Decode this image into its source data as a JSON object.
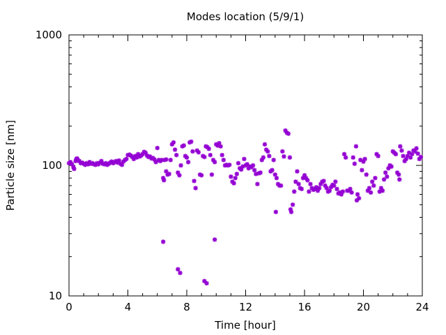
{
  "chart_data": {
    "type": "scatter",
    "title": "Modes location (5/9/1)",
    "xlabel": "Time [hour]",
    "ylabel": "Particle size [nm]",
    "xlim": [
      0,
      24
    ],
    "ylim": [
      10,
      1000
    ],
    "y_scale": "log",
    "grid": false,
    "legend": "none",
    "marker_color": "#9400d3",
    "x_ticks": [
      0,
      4,
      8,
      12,
      16,
      20,
      24
    ],
    "x_tick_labels": [
      "0",
      "4",
      "8",
      "12",
      "16",
      "20",
      "24"
    ],
    "y_ticks": [
      10,
      100,
      1000
    ],
    "y_tick_labels": [
      "10",
      "100",
      "1000"
    ],
    "points": [
      [
        0.0,
        104
      ],
      [
        0.1,
        106
      ],
      [
        0.2,
        102
      ],
      [
        0.3,
        97
      ],
      [
        0.35,
        94
      ],
      [
        0.45,
        108
      ],
      [
        0.5,
        112
      ],
      [
        0.55,
        113
      ],
      [
        0.6,
        110
      ],
      [
        0.7,
        108
      ],
      [
        0.8,
        104
      ],
      [
        0.9,
        105
      ],
      [
        1.0,
        103
      ],
      [
        1.1,
        101
      ],
      [
        1.2,
        104
      ],
      [
        1.3,
        102
      ],
      [
        1.4,
        106
      ],
      [
        1.5,
        103
      ],
      [
        1.6,
        104
      ],
      [
        1.7,
        102
      ],
      [
        1.8,
        101
      ],
      [
        1.9,
        104
      ],
      [
        2.0,
        102
      ],
      [
        2.1,
        105
      ],
      [
        2.2,
        108
      ],
      [
        2.3,
        103
      ],
      [
        2.4,
        102
      ],
      [
        2.5,
        104
      ],
      [
        2.6,
        101
      ],
      [
        2.7,
        103
      ],
      [
        2.8,
        105
      ],
      [
        2.9,
        107
      ],
      [
        3.0,
        104
      ],
      [
        3.1,
        106
      ],
      [
        3.2,
        108
      ],
      [
        3.3,
        105
      ],
      [
        3.4,
        109
      ],
      [
        3.5,
        103
      ],
      [
        3.6,
        101
      ],
      [
        3.7,
        107
      ],
      [
        3.8,
        110
      ],
      [
        3.9,
        112
      ],
      [
        4.0,
        120
      ],
      [
        4.1,
        121
      ],
      [
        4.2,
        119
      ],
      [
        4.3,
        116
      ],
      [
        4.4,
        112
      ],
      [
        4.5,
        118
      ],
      [
        4.6,
        115
      ],
      [
        4.7,
        122
      ],
      [
        4.8,
        117
      ],
      [
        4.9,
        119
      ],
      [
        5.0,
        122
      ],
      [
        5.1,
        127
      ],
      [
        5.2,
        125
      ],
      [
        5.3,
        119
      ],
      [
        5.4,
        116
      ],
      [
        5.5,
        117
      ],
      [
        5.6,
        113
      ],
      [
        5.7,
        114
      ],
      [
        5.8,
        111
      ],
      [
        5.9,
        106
      ],
      [
        6.0,
        136
      ],
      [
        6.1,
        110
      ],
      [
        6.2,
        108
      ],
      [
        6.3,
        110
      ],
      [
        6.4,
        80
      ],
      [
        6.45,
        77
      ],
      [
        6.5,
        110
      ],
      [
        6.6,
        111
      ],
      [
        6.6,
        90
      ],
      [
        6.7,
        85
      ],
      [
        6.8,
        86
      ],
      [
        6.9,
        110
      ],
      [
        7.0,
        145
      ],
      [
        7.1,
        150
      ],
      [
        7.2,
        132
      ],
      [
        7.3,
        120
      ],
      [
        7.4,
        88
      ],
      [
        7.5,
        84
      ],
      [
        7.6,
        100
      ],
      [
        7.7,
        140
      ],
      [
        7.8,
        142
      ],
      [
        7.9,
        118
      ],
      [
        8.0,
        115
      ],
      [
        8.1,
        106
      ],
      [
        8.2,
        150
      ],
      [
        8.3,
        152
      ],
      [
        8.4,
        128
      ],
      [
        8.5,
        76
      ],
      [
        8.6,
        67
      ],
      [
        8.7,
        130
      ],
      [
        8.8,
        126
      ],
      [
        8.9,
        85
      ],
      [
        9.0,
        84
      ],
      [
        9.1,
        118
      ],
      [
        9.2,
        116
      ],
      [
        9.3,
        140
      ],
      [
        9.4,
        138
      ],
      [
        9.5,
        134
      ],
      [
        9.6,
        120
      ],
      [
        9.7,
        85
      ],
      [
        9.8,
        110
      ],
      [
        9.9,
        106
      ],
      [
        10.0,
        145
      ],
      [
        10.1,
        142
      ],
      [
        10.2,
        148
      ],
      [
        10.3,
        140
      ],
      [
        10.4,
        120
      ],
      [
        10.5,
        110
      ],
      [
        10.6,
        100
      ],
      [
        10.7,
        101
      ],
      [
        10.8,
        100
      ],
      [
        10.9,
        101
      ],
      [
        11.0,
        82
      ],
      [
        11.1,
        75
      ],
      [
        11.2,
        73
      ],
      [
        11.3,
        80
      ],
      [
        11.4,
        86
      ],
      [
        11.5,
        104
      ],
      [
        11.6,
        95
      ],
      [
        11.7,
        93
      ],
      [
        11.8,
        98
      ],
      [
        11.9,
        112
      ],
      [
        12.0,
        100
      ],
      [
        12.1,
        102
      ],
      [
        12.2,
        95
      ],
      [
        12.3,
        98
      ],
      [
        12.4,
        97
      ],
      [
        12.5,
        100
      ],
      [
        12.6,
        92
      ],
      [
        12.7,
        86
      ],
      [
        12.8,
        72
      ],
      [
        12.9,
        87
      ],
      [
        13.0,
        88
      ],
      [
        13.1,
        110
      ],
      [
        13.2,
        115
      ],
      [
        13.3,
        145
      ],
      [
        13.4,
        132
      ],
      [
        13.5,
        128
      ],
      [
        13.6,
        118
      ],
      [
        13.7,
        90
      ],
      [
        13.8,
        92
      ],
      [
        13.9,
        110
      ],
      [
        14.0,
        85
      ],
      [
        14.05,
        44
      ],
      [
        14.1,
        80
      ],
      [
        14.2,
        72
      ],
      [
        14.3,
        70
      ],
      [
        14.4,
        70
      ],
      [
        14.5,
        128
      ],
      [
        14.6,
        117
      ],
      [
        14.7,
        185
      ],
      [
        14.8,
        178
      ],
      [
        14.9,
        175
      ],
      [
        15.0,
        115
      ],
      [
        15.05,
        46
      ],
      [
        15.1,
        44
      ],
      [
        15.2,
        50
      ],
      [
        15.3,
        63
      ],
      [
        15.4,
        75
      ],
      [
        15.5,
        90
      ],
      [
        15.6,
        72
      ],
      [
        15.7,
        67
      ],
      [
        15.8,
        66
      ],
      [
        15.9,
        80
      ],
      [
        16.0,
        84
      ],
      [
        16.1,
        80
      ],
      [
        16.2,
        77
      ],
      [
        16.3,
        63
      ],
      [
        16.4,
        72
      ],
      [
        16.5,
        67
      ],
      [
        16.6,
        65
      ],
      [
        16.7,
        66
      ],
      [
        16.8,
        68
      ],
      [
        16.9,
        64
      ],
      [
        17.0,
        67
      ],
      [
        17.1,
        72
      ],
      [
        17.2,
        75
      ],
      [
        17.3,
        76
      ],
      [
        17.4,
        70
      ],
      [
        17.5,
        67
      ],
      [
        17.6,
        63
      ],
      [
        17.7,
        64
      ],
      [
        17.8,
        68
      ],
      [
        17.9,
        71
      ],
      [
        18.0,
        70
      ],
      [
        18.1,
        75
      ],
      [
        18.2,
        66
      ],
      [
        18.3,
        61
      ],
      [
        18.4,
        62
      ],
      [
        18.5,
        60
      ],
      [
        18.6,
        63
      ],
      [
        18.7,
        122
      ],
      [
        18.8,
        115
      ],
      [
        18.9,
        64
      ],
      [
        19.0,
        64
      ],
      [
        19.1,
        66
      ],
      [
        19.2,
        62
      ],
      [
        19.3,
        115
      ],
      [
        19.4,
        103
      ],
      [
        19.5,
        140
      ],
      [
        19.55,
        54
      ],
      [
        19.6,
        60
      ],
      [
        19.7,
        56
      ],
      [
        19.8,
        110
      ],
      [
        19.9,
        92
      ],
      [
        20.0,
        107
      ],
      [
        20.1,
        112
      ],
      [
        20.2,
        85
      ],
      [
        20.3,
        64
      ],
      [
        20.4,
        67
      ],
      [
        20.5,
        62
      ],
      [
        20.6,
        75
      ],
      [
        20.7,
        70
      ],
      [
        20.8,
        80
      ],
      [
        20.9,
        122
      ],
      [
        21.0,
        118
      ],
      [
        21.1,
        63
      ],
      [
        21.2,
        67
      ],
      [
        21.3,
        64
      ],
      [
        21.4,
        78
      ],
      [
        21.5,
        88
      ],
      [
        21.6,
        82
      ],
      [
        21.7,
        95
      ],
      [
        21.8,
        100
      ],
      [
        21.9,
        98
      ],
      [
        22.0,
        128
      ],
      [
        22.1,
        125
      ],
      [
        22.2,
        122
      ],
      [
        22.3,
        88
      ],
      [
        22.4,
        85
      ],
      [
        22.45,
        78
      ],
      [
        22.5,
        140
      ],
      [
        22.6,
        130
      ],
      [
        22.7,
        118
      ],
      [
        22.8,
        108
      ],
      [
        22.9,
        112
      ],
      [
        23.0,
        118
      ],
      [
        23.1,
        125
      ],
      [
        23.2,
        115
      ],
      [
        23.3,
        122
      ],
      [
        23.4,
        130
      ],
      [
        23.5,
        128
      ],
      [
        23.6,
        135
      ],
      [
        23.7,
        123
      ],
      [
        23.8,
        112
      ],
      [
        23.9,
        116
      ],
      [
        6.4,
        26
      ],
      [
        7.4,
        16
      ],
      [
        7.55,
        15
      ],
      [
        9.2,
        13
      ],
      [
        9.35,
        12.5
      ],
      [
        9.9,
        27
      ]
    ]
  }
}
